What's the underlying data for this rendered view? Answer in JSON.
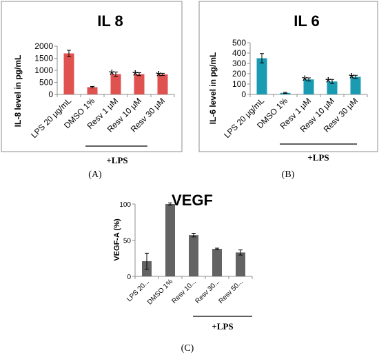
{
  "chart_data": [
    {
      "type": "bar",
      "panel": "(A)",
      "title": "IL 8",
      "ylabel": "IL-8 level in pg/mL",
      "ylim": [
        0,
        2000
      ],
      "yticks": [
        "0",
        "500",
        "1000",
        "1500",
        "2000"
      ],
      "categories": [
        "LPS 20 μg/mL",
        "DMSO 1%",
        "Resv 1 μM",
        "Resv 10 μM",
        "Resv 30 μM"
      ],
      "values": [
        1700,
        300,
        840,
        840,
        830
      ],
      "errors": [
        130,
        30,
        90,
        60,
        45
      ],
      "significance": [
        "",
        "",
        "*",
        "*",
        "*"
      ],
      "group_label": "+LPS",
      "color": "#e0524f"
    },
    {
      "type": "bar",
      "panel": "(B)",
      "title": "IL 6",
      "ylabel": "IL-6 level in pg/mL",
      "ylim": [
        0,
        500
      ],
      "yticks": [
        "0",
        "100",
        "200",
        "300",
        "400",
        "500"
      ],
      "categories": [
        "LPS 20 μg/mL",
        "DMSO 1%",
        "Resv 1 μM",
        "Resv 10 μM",
        "Resv 30 μM"
      ],
      "values": [
        350,
        15,
        145,
        125,
        170
      ],
      "errors": [
        45,
        5,
        15,
        20,
        15
      ],
      "significance": [
        "",
        "",
        "*",
        "*",
        "*"
      ],
      "group_label": "+LPS",
      "color": "#1b9bb2"
    },
    {
      "type": "bar",
      "panel": "(C)",
      "title": "VEGF",
      "ylabel": "VEGF-A (%)",
      "ylim": [
        0,
        100
      ],
      "yticks": [
        "0",
        "50",
        "100"
      ],
      "categories": [
        "LPS 20...",
        "DMSO 1%",
        "Resv 10...",
        "Resv 30...",
        "Resv 50..."
      ],
      "values": [
        21,
        100,
        57,
        38,
        33
      ],
      "errors": [
        11,
        1.5,
        2.5,
        1,
        3.5
      ],
      "significance": [
        "",
        "",
        "",
        "",
        ""
      ],
      "group_label": "+LPS",
      "color": "#636363"
    }
  ]
}
